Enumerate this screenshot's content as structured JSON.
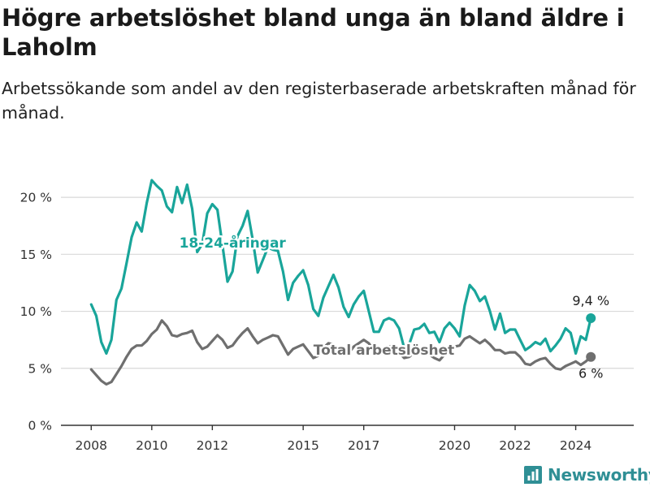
{
  "title": "Högre arbetslöshet bland unga än bland äldre i Laholm",
  "subtitle": "Arbetssökande som andel av den registerbaserade arbetskraften månad för månad.",
  "brand": "Newsworthy",
  "colors": {
    "youth": "#19a59a",
    "total": "#6f6f6f",
    "grid": "#d9d9d9",
    "axis": "#333333",
    "brand": "#2f8f95"
  },
  "chart_data": {
    "type": "line",
    "title": "Högre arbetslöshet bland unga än bland äldre i Laholm",
    "subtitle": "Arbetssökande som andel av den registerbaserade arbetskraften månad för månad.",
    "xlabel": "",
    "ylabel": "",
    "xlim": [
      "2007-01",
      "2025-12"
    ],
    "ylim": [
      0,
      22
    ],
    "yticks": [
      0,
      5,
      10,
      15,
      20
    ],
    "ytick_labels": [
      "0 %",
      "5 %",
      "10 %",
      "15 %",
      "20 %"
    ],
    "xticks": [
      "2008",
      "2010",
      "2012",
      "2015",
      "2017",
      "2020",
      "2022",
      "2024"
    ],
    "grid": "horizontal",
    "legend": "inline labels",
    "series": [
      {
        "name": "18-24-åringar",
        "color": "#19a59a",
        "end_label": "9,4 %",
        "points": [
          [
            "2008-01",
            10.6
          ],
          [
            "2008-03",
            9.6
          ],
          [
            "2008-05",
            7.3
          ],
          [
            "2008-07",
            6.3
          ],
          [
            "2008-09",
            7.5
          ],
          [
            "2008-11",
            11.0
          ],
          [
            "2009-01",
            12.0
          ],
          [
            "2009-03",
            14.2
          ],
          [
            "2009-05",
            16.5
          ],
          [
            "2009-07",
            17.8
          ],
          [
            "2009-09",
            17.0
          ],
          [
            "2009-11",
            19.5
          ],
          [
            "2010-01",
            21.5
          ],
          [
            "2010-03",
            21.0
          ],
          [
            "2010-05",
            20.6
          ],
          [
            "2010-07",
            19.2
          ],
          [
            "2010-09",
            18.7
          ],
          [
            "2010-11",
            20.9
          ],
          [
            "2011-01",
            19.5
          ],
          [
            "2011-03",
            21.1
          ],
          [
            "2011-05",
            19.0
          ],
          [
            "2011-07",
            15.2
          ],
          [
            "2011-09",
            15.9
          ],
          [
            "2011-11",
            18.6
          ],
          [
            "2012-01",
            19.4
          ],
          [
            "2012-03",
            18.9
          ],
          [
            "2012-05",
            15.8
          ],
          [
            "2012-07",
            12.6
          ],
          [
            "2012-09",
            13.5
          ],
          [
            "2012-11",
            16.6
          ],
          [
            "2013-01",
            17.5
          ],
          [
            "2013-03",
            18.8
          ],
          [
            "2013-05",
            16.3
          ],
          [
            "2013-07",
            13.4
          ],
          [
            "2013-09",
            14.5
          ],
          [
            "2013-11",
            15.6
          ],
          [
            "2014-01",
            15.4
          ],
          [
            "2014-03",
            15.3
          ],
          [
            "2014-05",
            13.5
          ],
          [
            "2014-07",
            11.0
          ],
          [
            "2014-09",
            12.5
          ],
          [
            "2014-11",
            13.1
          ],
          [
            "2015-01",
            13.6
          ],
          [
            "2015-03",
            12.3
          ],
          [
            "2015-05",
            10.2
          ],
          [
            "2015-07",
            9.6
          ],
          [
            "2015-09",
            11.2
          ],
          [
            "2015-11",
            12.2
          ],
          [
            "2016-01",
            13.2
          ],
          [
            "2016-03",
            12.1
          ],
          [
            "2016-05",
            10.4
          ],
          [
            "2016-07",
            9.5
          ],
          [
            "2016-09",
            10.6
          ],
          [
            "2016-11",
            11.3
          ],
          [
            "2017-01",
            11.8
          ],
          [
            "2017-03",
            10.0
          ],
          [
            "2017-05",
            8.2
          ],
          [
            "2017-07",
            8.2
          ],
          [
            "2017-09",
            9.2
          ],
          [
            "2017-11",
            9.4
          ],
          [
            "2018-01",
            9.2
          ],
          [
            "2018-03",
            8.5
          ],
          [
            "2018-05",
            6.8
          ],
          [
            "2018-07",
            7.1
          ],
          [
            "2018-09",
            8.4
          ],
          [
            "2018-11",
            8.5
          ],
          [
            "2019-01",
            8.9
          ],
          [
            "2019-03",
            8.1
          ],
          [
            "2019-05",
            8.2
          ],
          [
            "2019-07",
            7.3
          ],
          [
            "2019-09",
            8.5
          ],
          [
            "2019-11",
            9.0
          ],
          [
            "2020-01",
            8.5
          ],
          [
            "2020-03",
            7.8
          ],
          [
            "2020-05",
            10.5
          ],
          [
            "2020-07",
            12.3
          ],
          [
            "2020-09",
            11.8
          ],
          [
            "2020-11",
            10.9
          ],
          [
            "2021-01",
            11.3
          ],
          [
            "2021-03",
            10.0
          ],
          [
            "2021-05",
            8.4
          ],
          [
            "2021-07",
            9.8
          ],
          [
            "2021-09",
            8.1
          ],
          [
            "2021-11",
            8.4
          ],
          [
            "2022-01",
            8.4
          ],
          [
            "2022-03",
            7.5
          ],
          [
            "2022-05",
            6.6
          ],
          [
            "2022-07",
            6.9
          ],
          [
            "2022-09",
            7.3
          ],
          [
            "2022-11",
            7.1
          ],
          [
            "2023-01",
            7.6
          ],
          [
            "2023-03",
            6.5
          ],
          [
            "2023-05",
            7.0
          ],
          [
            "2023-07",
            7.6
          ],
          [
            "2023-09",
            8.5
          ],
          [
            "2023-11",
            8.1
          ],
          [
            "2024-01",
            6.3
          ],
          [
            "2024-03",
            7.8
          ],
          [
            "2024-05",
            7.5
          ],
          [
            "2024-07",
            9.4
          ]
        ]
      },
      {
        "name": "Total arbetslöshet",
        "color": "#6f6f6f",
        "end_label": "6 %",
        "points": [
          [
            "2008-01",
            4.9
          ],
          [
            "2008-03",
            4.4
          ],
          [
            "2008-05",
            3.9
          ],
          [
            "2008-07",
            3.6
          ],
          [
            "2008-09",
            3.8
          ],
          [
            "2008-11",
            4.5
          ],
          [
            "2009-01",
            5.2
          ],
          [
            "2009-03",
            6.0
          ],
          [
            "2009-05",
            6.7
          ],
          [
            "2009-07",
            7.0
          ],
          [
            "2009-09",
            7.0
          ],
          [
            "2009-11",
            7.4
          ],
          [
            "2010-01",
            8.0
          ],
          [
            "2010-03",
            8.4
          ],
          [
            "2010-05",
            9.2
          ],
          [
            "2010-07",
            8.7
          ],
          [
            "2010-09",
            7.9
          ],
          [
            "2010-11",
            7.8
          ],
          [
            "2011-01",
            8.0
          ],
          [
            "2011-03",
            8.1
          ],
          [
            "2011-05",
            8.3
          ],
          [
            "2011-07",
            7.3
          ],
          [
            "2011-09",
            6.7
          ],
          [
            "2011-11",
            6.9
          ],
          [
            "2012-01",
            7.4
          ],
          [
            "2012-03",
            7.9
          ],
          [
            "2012-05",
            7.5
          ],
          [
            "2012-07",
            6.8
          ],
          [
            "2012-09",
            7.0
          ],
          [
            "2012-11",
            7.6
          ],
          [
            "2013-01",
            8.1
          ],
          [
            "2013-03",
            8.5
          ],
          [
            "2013-05",
            7.8
          ],
          [
            "2013-07",
            7.2
          ],
          [
            "2013-09",
            7.5
          ],
          [
            "2013-11",
            7.7
          ],
          [
            "2014-01",
            7.9
          ],
          [
            "2014-03",
            7.8
          ],
          [
            "2014-05",
            7.0
          ],
          [
            "2014-07",
            6.2
          ],
          [
            "2014-09",
            6.7
          ],
          [
            "2014-11",
            6.9
          ],
          [
            "2015-01",
            7.1
          ],
          [
            "2015-03",
            6.5
          ],
          [
            "2015-05",
            5.9
          ],
          [
            "2015-07",
            6.1
          ],
          [
            "2015-09",
            6.8
          ],
          [
            "2015-11",
            7.2
          ],
          [
            "2016-01",
            7.1
          ],
          [
            "2016-03",
            6.6
          ],
          [
            "2016-05",
            6.2
          ],
          [
            "2016-07",
            6.3
          ],
          [
            "2016-09",
            6.9
          ],
          [
            "2016-11",
            7.2
          ],
          [
            "2017-01",
            7.5
          ],
          [
            "2017-03",
            7.2
          ],
          [
            "2017-05",
            6.6
          ],
          [
            "2017-07",
            6.4
          ],
          [
            "2017-09",
            6.6
          ],
          [
            "2017-11",
            6.9
          ],
          [
            "2018-01",
            7.0
          ],
          [
            "2018-03",
            6.4
          ],
          [
            "2018-05",
            5.9
          ],
          [
            "2018-07",
            6.0
          ],
          [
            "2018-09",
            6.4
          ],
          [
            "2018-11",
            6.6
          ],
          [
            "2019-01",
            6.4
          ],
          [
            "2019-03",
            6.2
          ],
          [
            "2019-05",
            5.9
          ],
          [
            "2019-07",
            5.7
          ],
          [
            "2019-09",
            6.2
          ],
          [
            "2019-11",
            6.6
          ],
          [
            "2020-01",
            6.9
          ],
          [
            "2020-03",
            7.0
          ],
          [
            "2020-05",
            7.6
          ],
          [
            "2020-07",
            7.8
          ],
          [
            "2020-09",
            7.5
          ],
          [
            "2020-11",
            7.2
          ],
          [
            "2021-01",
            7.5
          ],
          [
            "2021-03",
            7.1
          ],
          [
            "2021-05",
            6.6
          ],
          [
            "2021-07",
            6.6
          ],
          [
            "2021-09",
            6.3
          ],
          [
            "2021-11",
            6.4
          ],
          [
            "2022-01",
            6.4
          ],
          [
            "2022-03",
            6.0
          ],
          [
            "2022-05",
            5.4
          ],
          [
            "2022-07",
            5.3
          ],
          [
            "2022-09",
            5.6
          ],
          [
            "2022-11",
            5.8
          ],
          [
            "2023-01",
            5.9
          ],
          [
            "2023-03",
            5.4
          ],
          [
            "2023-05",
            5.0
          ],
          [
            "2023-07",
            4.9
          ],
          [
            "2023-09",
            5.2
          ],
          [
            "2023-11",
            5.4
          ],
          [
            "2024-01",
            5.6
          ],
          [
            "2024-03",
            5.3
          ],
          [
            "2024-05",
            5.6
          ],
          [
            "2024-07",
            6.0
          ]
        ]
      }
    ],
    "annotations": [
      {
        "text": "18-24-åringar",
        "series": "18-24-åringar",
        "at": [
          "2012-09",
          15.6
        ]
      },
      {
        "text": "Total arbetslöshet",
        "series": "Total arbetslöshet",
        "at": [
          "2017-09",
          6.2
        ]
      }
    ]
  }
}
